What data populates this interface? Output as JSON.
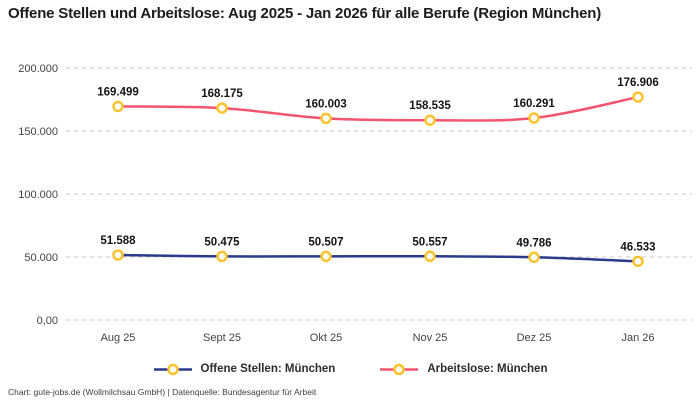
{
  "title": "Offene Stellen und Arbeitslose: Aug 2025 - Jan 2026 für alle Berufe (Region München)",
  "footer": "Chart: gute-jobs.de (Wollmilchsau GmbH) | Datenquelle: Bundesagentur für Arbeit",
  "colors": {
    "background": "#ffffff",
    "gridline": "#c9c9c9",
    "marker_stroke": "#fdc32f",
    "marker_fill": "#ffffff",
    "series_offene_stellen": "#2a3a8c",
    "series_arbeitslose": "#f2566f",
    "title_text": "#1c1c1c",
    "tick_text": "#444444",
    "data_label_text": "#141414"
  },
  "chart_data": {
    "type": "line",
    "title": "Offene Stellen und Arbeitslose: Aug 2025 - Jan 2026 für alle Berufe (Region München)",
    "xlabel": "",
    "ylabel": "",
    "categories": [
      "Aug 25",
      "Sept 25",
      "Okt 25",
      "Nov 25",
      "Dez 25",
      "Jan 26"
    ],
    "series": [
      {
        "name": "Offene Stellen: München",
        "color": "#2a3a8c",
        "values": [
          51588,
          50475,
          50507,
          50557,
          49786,
          46533
        ],
        "labels": [
          "51.588",
          "50.475",
          "50.507",
          "50.557",
          "49.786",
          "46.533"
        ]
      },
      {
        "name": "Arbeitslose: München",
        "color": "#f2566f",
        "values": [
          169499,
          168175,
          160003,
          158535,
          160291,
          176906
        ],
        "labels": [
          "169.499",
          "168.175",
          "160.003",
          "158.535",
          "160.291",
          "176.906"
        ]
      }
    ],
    "yticks": [
      {
        "value": 0,
        "label": "0,00"
      },
      {
        "value": 50000,
        "label": "50.000"
      },
      {
        "value": 100000,
        "label": "100.000"
      },
      {
        "value": 150000,
        "label": "150.000"
      },
      {
        "value": 200000,
        "label": "200.000"
      }
    ],
    "ylim": [
      0,
      200000
    ],
    "grid": "horizontal-dashed",
    "legend_position": "bottom",
    "marker": {
      "shape": "circle",
      "fill": "#ffffff",
      "stroke": "#fdc32f"
    }
  }
}
